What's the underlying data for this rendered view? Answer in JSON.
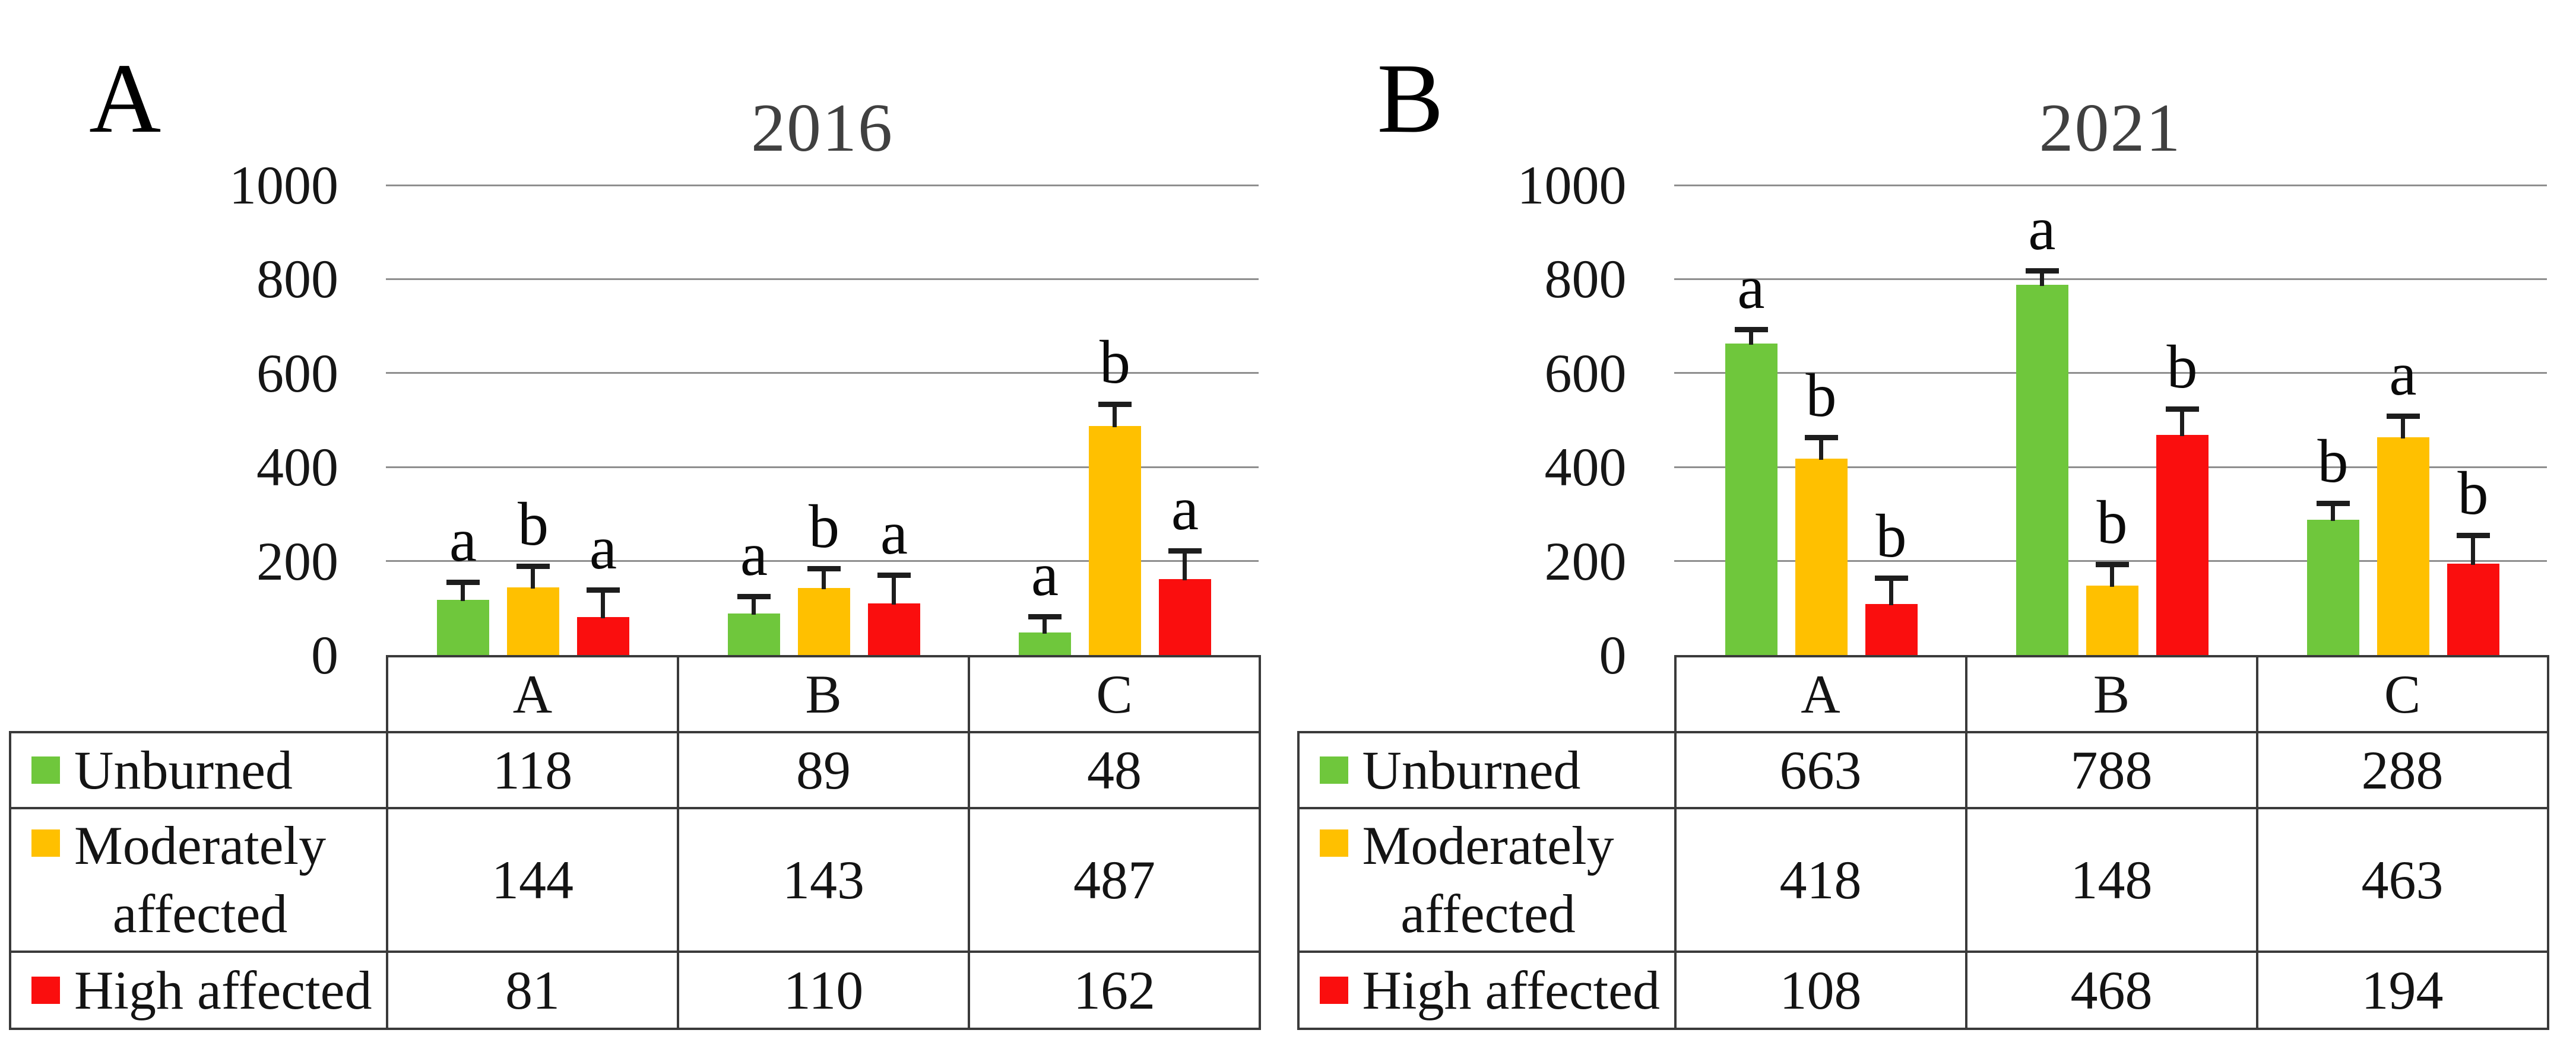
{
  "figure": {
    "kind": "two-panel grouped bar figure with data tables",
    "background": "#FFFFFF"
  },
  "colors": {
    "green": "#6FC73C",
    "yellow": "#FFC000",
    "red": "#FA0E0E",
    "grid": "#8F8F8F",
    "table_border": "#3A3A3A",
    "title_text": "#404040",
    "text": "#141414"
  },
  "chart_data": [
    {
      "type": "bar",
      "panel_label": "A",
      "title": "2016",
      "categories": [
        "A",
        "B",
        "C"
      ],
      "ylim": [
        0,
        1000
      ],
      "y_tick_labels": [
        "1000",
        "800",
        "600",
        "400",
        "200",
        "0"
      ],
      "gridline_values": [
        1000,
        800,
        600,
        400,
        200
      ],
      "grid": true,
      "legend_position": "table-left-column",
      "series": [
        {
          "name": "Unburned",
          "label_lines": [
            "Unburned"
          ],
          "color": "green",
          "values": [
            118,
            89,
            48
          ],
          "errors_plus": [
            38,
            36,
            34
          ],
          "sig_letters": [
            "a",
            "a",
            "a"
          ]
        },
        {
          "name": "Moderately affected",
          "label_lines": [
            "Moderately",
            "affected"
          ],
          "color": "yellow",
          "values": [
            144,
            143,
            487
          ],
          "errors_plus": [
            45,
            42,
            47
          ],
          "sig_letters": [
            "b",
            "b",
            "b"
          ]
        },
        {
          "name": "High affected",
          "label_lines": [
            "High affected"
          ],
          "color": "red",
          "values": [
            81,
            110,
            162
          ],
          "errors_plus": [
            58,
            60,
            60
          ],
          "sig_letters": [
            "a",
            "a",
            "a"
          ]
        }
      ]
    },
    {
      "type": "bar",
      "panel_label": "B",
      "title": "2021",
      "categories": [
        "A",
        "B",
        "C"
      ],
      "ylim": [
        0,
        1000
      ],
      "y_tick_labels": [
        "1000",
        "800",
        "600",
        "400",
        "200",
        "0"
      ],
      "gridline_values": [
        1000,
        800,
        600,
        400,
        200
      ],
      "grid": true,
      "legend_position": "table-left-column",
      "series": [
        {
          "name": "Unburned",
          "label_lines": [
            "Unburned"
          ],
          "color": "green",
          "values": [
            663,
            788,
            288
          ],
          "errors_plus": [
            30,
            30,
            35
          ],
          "sig_letters": [
            "a",
            "a",
            "b"
          ]
        },
        {
          "name": "Moderately affected",
          "label_lines": [
            "Moderately",
            "affected"
          ],
          "color": "yellow",
          "values": [
            418,
            148,
            463
          ],
          "errors_plus": [
            45,
            45,
            45
          ],
          "sig_letters": [
            "b",
            "b",
            "a"
          ]
        },
        {
          "name": "High affected",
          "label_lines": [
            "High affected"
          ],
          "color": "red",
          "values": [
            108,
            468,
            194
          ],
          "errors_plus": [
            55,
            55,
            60
          ],
          "sig_letters": [
            "b",
            "b",
            "b"
          ]
        }
      ]
    }
  ]
}
